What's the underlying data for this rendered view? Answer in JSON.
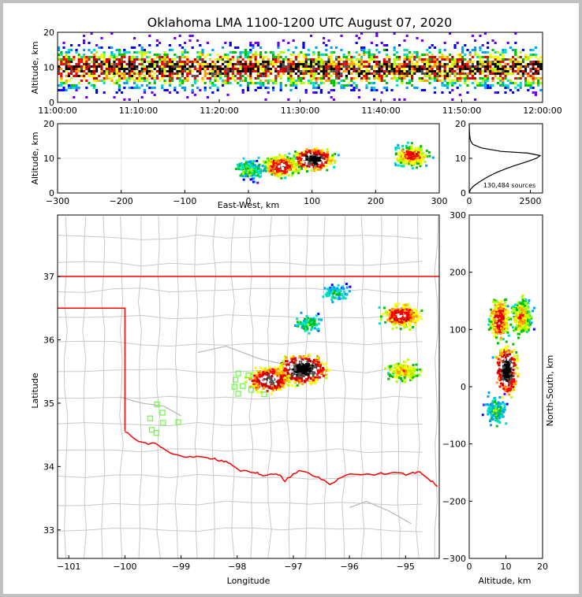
{
  "title": "Oklahoma LMA 1100-1200 UTC August 07, 2020",
  "colors": {
    "border": "#ff0000",
    "counties": "#c8c8c8",
    "stations": "#66ff33",
    "grid": "#e6e6e6"
  },
  "colormap": [
    "#6a00ff",
    "#0000ff",
    "#00a0ff",
    "#00e0c0",
    "#00c000",
    "#b0ff00",
    "#ffff00",
    "#ffa000",
    "#ff0000",
    "#c00000",
    "#ffffff",
    "#555555",
    "#000000"
  ],
  "chart_data": [
    {
      "id": "time-altitude",
      "type": "heatmap",
      "x_tick_labels": [
        "11:00:00",
        "11:10:00",
        "11:20:00",
        "11:30:00",
        "11:40:00",
        "11:50:00",
        "12:00:00"
      ],
      "ylabel": "Altitude, km",
      "y_ticks": [
        0,
        10,
        20
      ],
      "ylim": [
        0,
        20
      ]
    },
    {
      "id": "east-west-altitude",
      "type": "heatmap",
      "xlabel": "East-West, km",
      "x_ticks": [
        -300,
        -200,
        -100,
        0,
        100,
        200,
        300
      ],
      "xlim": [
        -300,
        300
      ],
      "ylabel": "Altitude, km",
      "y_ticks": [
        0,
        10,
        20
      ],
      "ylim": [
        0,
        20
      ],
      "clusters": [
        {
          "x": 100,
          "alt": 10,
          "intensity": 1.0
        },
        {
          "x": 50,
          "alt": 8,
          "intensity": 0.75
        },
        {
          "x": 255,
          "alt": 11,
          "intensity": 0.65
        },
        {
          "x": 0,
          "alt": 7,
          "intensity": 0.35
        }
      ]
    },
    {
      "id": "altitude-histogram",
      "type": "line",
      "x_ticks": [
        0,
        2500
      ],
      "xlim": [
        0,
        3000
      ],
      "y_ticks": [
        0,
        10,
        20
      ],
      "ylim": [
        0,
        20
      ],
      "annotation": "130,484 sources",
      "profile": [
        [
          0,
          0
        ],
        [
          1,
          50
        ],
        [
          2,
          180
        ],
        [
          3,
          380
        ],
        [
          4,
          600
        ],
        [
          5,
          850
        ],
        [
          6,
          1150
        ],
        [
          7,
          1500
        ],
        [
          8,
          1900
        ],
        [
          9,
          2350
        ],
        [
          10,
          2750
        ],
        [
          10.8,
          2900
        ],
        [
          11.5,
          2400
        ],
        [
          12,
          1300
        ],
        [
          13,
          500
        ],
        [
          14,
          150
        ],
        [
          15,
          60
        ],
        [
          16,
          30
        ],
        [
          17,
          15
        ],
        [
          18,
          8
        ],
        [
          19,
          4
        ],
        [
          20,
          0
        ]
      ]
    },
    {
      "id": "plan-view",
      "type": "heatmap",
      "xlabel": "Longitude",
      "x_ticks": [
        -101,
        -100,
        -99,
        -98,
        -97,
        -96,
        -95
      ],
      "xlim": [
        -101.2,
        -94.4
      ],
      "ylabel": "Latitude",
      "y_ticks": [
        33,
        34,
        35,
        36,
        37
      ],
      "ylim": [
        32.55,
        37.97
      ],
      "stations": [
        [
          -99.43,
          34.98
        ],
        [
          -99.33,
          34.85
        ],
        [
          -99.55,
          34.76
        ],
        [
          -99.32,
          34.69
        ],
        [
          -99.05,
          34.7
        ],
        [
          -99.52,
          34.58
        ],
        [
          -99.44,
          34.53
        ],
        [
          -97.98,
          35.47
        ],
        [
          -97.8,
          35.44
        ],
        [
          -98.03,
          35.37
        ],
        [
          -98.05,
          35.26
        ],
        [
          -97.9,
          35.27
        ],
        [
          -97.75,
          35.21
        ],
        [
          -97.52,
          35.14
        ],
        [
          -97.98,
          35.15
        ]
      ],
      "clusters": [
        {
          "lon": -96.85,
          "lat": 35.55,
          "intensity": 1.0
        },
        {
          "lon": -97.45,
          "lat": 35.38,
          "intensity": 0.8
        },
        {
          "lon": -95.1,
          "lat": 36.4,
          "intensity": 0.7
        },
        {
          "lon": -95.05,
          "lat": 35.53,
          "intensity": 0.5
        },
        {
          "lon": -96.75,
          "lat": 36.28,
          "intensity": 0.3
        },
        {
          "lon": -96.25,
          "lat": 36.76,
          "intensity": 0.25
        }
      ]
    },
    {
      "id": "altitude-north-south",
      "type": "heatmap",
      "xlabel": "Altitude, km",
      "x_ticks": [
        0,
        10,
        20
      ],
      "xlim": [
        0,
        20
      ],
      "ylabel": "North-South, km",
      "y_ticks": [
        -300,
        -200,
        -100,
        0,
        100,
        200,
        300
      ],
      "ylim": [
        -300,
        300
      ],
      "clusters": [
        {
          "alt": 10,
          "y": 30,
          "intensity": 1.0
        },
        {
          "alt": 8,
          "y": 120,
          "intensity": 0.7
        },
        {
          "alt": 14,
          "y": 125,
          "intensity": 0.55
        },
        {
          "alt": 7,
          "y": -40,
          "intensity": 0.3
        }
      ]
    }
  ]
}
